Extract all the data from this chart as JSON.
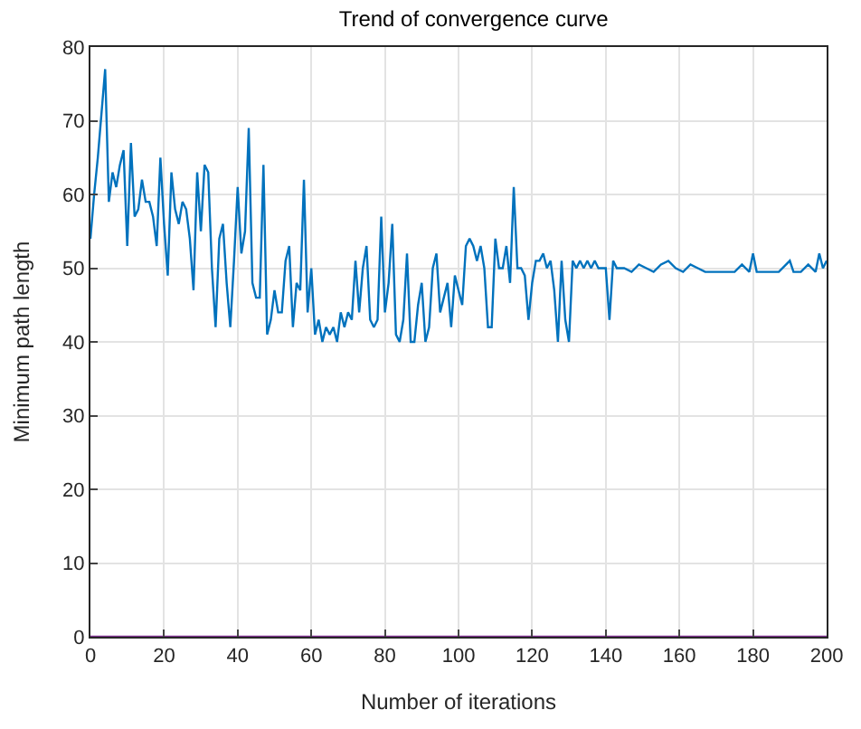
{
  "chart_data": {
    "type": "line",
    "title": "Trend of convergence curve",
    "xlabel": "Number of iterations",
    "ylabel": "Minimum path length",
    "xlim": [
      0,
      200
    ],
    "xticks": [
      0,
      20,
      40,
      60,
      80,
      100,
      120,
      140,
      160,
      180,
      200
    ],
    "ylim": [
      0,
      80
    ],
    "yticks": [
      0,
      10,
      20,
      30,
      40,
      50,
      60,
      70,
      80
    ],
    "grid": true,
    "marker": "none",
    "line_style": "solid",
    "series": [
      {
        "color": "#0072bd",
        "x": [
          0,
          1,
          2,
          3,
          4,
          5,
          6,
          7,
          8,
          9,
          10,
          11,
          12,
          13,
          14,
          15,
          16,
          17,
          18,
          19,
          20,
          21,
          22,
          23,
          24,
          25,
          26,
          27,
          28,
          29,
          30,
          31,
          32,
          33,
          34,
          35,
          36,
          37,
          38,
          39,
          40,
          41,
          42,
          43,
          44,
          45,
          46,
          47,
          48,
          49,
          50,
          51,
          52,
          53,
          54,
          55,
          56,
          57,
          58,
          59,
          60,
          61,
          62,
          63,
          64,
          65,
          66,
          67,
          68,
          69,
          70,
          71,
          72,
          73,
          74,
          75,
          76,
          77,
          78,
          79,
          80,
          81,
          82,
          83,
          84,
          85,
          86,
          87,
          88,
          89,
          90,
          91,
          92,
          93,
          94,
          95,
          96,
          97,
          98,
          99,
          100,
          101,
          102,
          103,
          104,
          105,
          106,
          107,
          108,
          109,
          110,
          111,
          112,
          113,
          114,
          115,
          116,
          117,
          118,
          119,
          120,
          121,
          122,
          123,
          124,
          125,
          126,
          127,
          128,
          129,
          130,
          131,
          132,
          133,
          134,
          135,
          136,
          137,
          138,
          139,
          140,
          141,
          142,
          143,
          145,
          147,
          149,
          151,
          153,
          155,
          157,
          159,
          161,
          163,
          165,
          167,
          169,
          171,
          173,
          175,
          177,
          179,
          180,
          181,
          183,
          185,
          187,
          189,
          190,
          191,
          193,
          195,
          197,
          198,
          199,
          200
        ],
        "values": [
          54,
          60,
          65,
          71,
          77,
          59,
          63,
          61,
          64,
          66,
          53,
          67,
          57,
          58,
          62,
          59,
          59,
          57,
          53,
          65,
          56,
          49,
          63,
          58,
          56,
          59,
          58,
          54,
          47,
          63,
          55,
          64,
          63,
          50,
          42,
          54,
          56,
          48,
          42,
          51,
          61,
          52,
          55,
          69,
          48,
          46,
          46,
          64,
          41,
          43,
          47,
          44,
          44,
          51,
          53,
          42,
          48,
          47,
          62,
          44,
          50,
          41,
          43,
          40,
          42,
          41,
          42,
          40,
          44,
          42,
          44,
          43,
          51,
          44,
          50,
          53,
          43,
          42,
          43,
          57,
          44,
          48,
          56,
          41,
          40,
          43,
          52,
          40,
          40,
          45,
          48,
          40,
          42,
          50,
          52,
          44,
          46,
          48,
          42,
          49,
          47,
          45,
          53,
          54,
          53,
          51,
          53,
          50,
          42,
          42,
          54,
          50,
          50,
          53,
          48,
          61,
          50,
          50,
          49,
          43,
          48,
          51,
          51,
          52,
          50,
          51,
          47,
          40,
          51,
          43,
          40,
          51,
          50,
          51,
          50,
          51,
          50,
          51,
          50,
          50,
          50,
          43,
          51,
          50,
          50,
          49.5,
          50.5,
          50,
          49.5,
          50.5,
          51,
          50,
          49.5,
          50.5,
          50,
          49.5,
          49.5,
          49.5,
          49.5,
          49.5,
          50.5,
          49.5,
          52,
          49.5,
          49.5,
          49.5,
          49.5,
          50.5,
          51,
          49.5,
          49.5,
          50.5,
          49.5,
          52,
          50,
          51
        ]
      },
      {
        "color": "#7e2f8e",
        "x": [
          0,
          200
        ],
        "values": [
          0,
          0
        ]
      }
    ]
  }
}
